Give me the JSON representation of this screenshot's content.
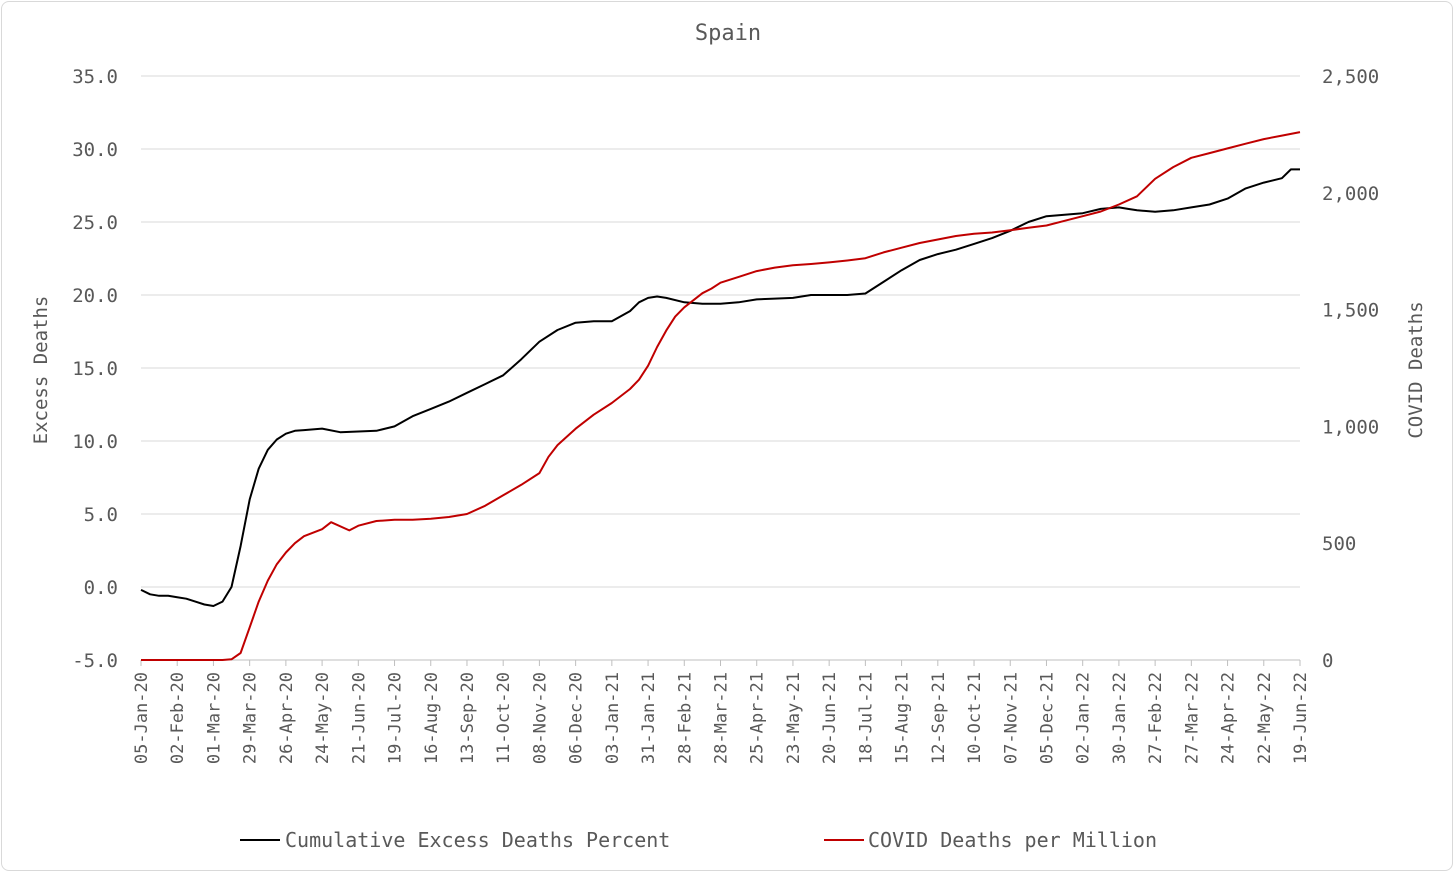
{
  "chart_data": {
    "type": "line",
    "title": "Spain",
    "y_left_label": "Excess Deaths",
    "y_right_label": "COVID Deaths",
    "y_left_range": [
      -5,
      35
    ],
    "y_left_ticks": [
      "35.0",
      "30.0",
      "25.0",
      "20.0",
      "15.0",
      "10.0",
      "5.0",
      "0.0",
      "-5.0"
    ],
    "y_right_range": [
      0,
      2500
    ],
    "y_right_ticks": [
      "2,500",
      "2,000",
      "1,500",
      "1,000",
      "500",
      "0"
    ],
    "x_range": [
      "2020-01-05",
      "2022-06-19"
    ],
    "x_tick_labels": [
      "05-Jan-20",
      "02-Feb-20",
      "01-Mar-20",
      "29-Mar-20",
      "26-Apr-20",
      "24-May-20",
      "21-Jun-20",
      "19-Jul-20",
      "16-Aug-20",
      "13-Sep-20",
      "11-Oct-20",
      "08-Nov-20",
      "06-Dec-20",
      "03-Jan-21",
      "31-Jan-21",
      "28-Feb-21",
      "28-Mar-21",
      "25-Apr-21",
      "23-May-21",
      "20-Jun-21",
      "18-Jul-21",
      "15-Aug-21",
      "12-Sep-21",
      "10-Oct-21",
      "07-Nov-21",
      "05-Dec-21",
      "02-Jan-22",
      "30-Jan-22",
      "27-Feb-22",
      "27-Mar-22",
      "24-Apr-22",
      "22-May-22",
      "19-Jun-22"
    ],
    "grid": true,
    "legend_position": "bottom",
    "series": [
      {
        "name": "Cumulative Excess Deaths Percent",
        "axis": "left",
        "color": "#000000",
        "x": [
          "2020-01-05",
          "2020-01-12",
          "2020-01-19",
          "2020-01-26",
          "2020-02-02",
          "2020-02-09",
          "2020-02-16",
          "2020-02-23",
          "2020-03-01",
          "2020-03-08",
          "2020-03-15",
          "2020-03-22",
          "2020-03-29",
          "2020-04-05",
          "2020-04-12",
          "2020-04-19",
          "2020-04-26",
          "2020-05-03",
          "2020-05-10",
          "2020-05-24",
          "2020-06-07",
          "2020-06-21",
          "2020-07-05",
          "2020-07-19",
          "2020-08-02",
          "2020-08-16",
          "2020-08-30",
          "2020-09-13",
          "2020-09-27",
          "2020-10-11",
          "2020-10-25",
          "2020-11-08",
          "2020-11-22",
          "2020-12-06",
          "2020-12-20",
          "2021-01-03",
          "2021-01-17",
          "2021-01-24",
          "2021-01-31",
          "2021-02-07",
          "2021-02-14",
          "2021-02-28",
          "2021-03-14",
          "2021-03-28",
          "2021-04-11",
          "2021-04-25",
          "2021-05-09",
          "2021-05-23",
          "2021-06-06",
          "2021-06-20",
          "2021-07-04",
          "2021-07-18",
          "2021-08-01",
          "2021-08-15",
          "2021-08-29",
          "2021-09-12",
          "2021-09-26",
          "2021-10-10",
          "2021-10-24",
          "2021-11-07",
          "2021-11-21",
          "2021-12-05",
          "2021-12-19",
          "2022-01-02",
          "2022-01-16",
          "2022-01-30",
          "2022-02-06",
          "2022-02-13",
          "2022-02-27",
          "2022-03-13",
          "2022-03-27",
          "2022-04-10",
          "2022-04-24",
          "2022-05-08",
          "2022-05-22",
          "2022-06-05",
          "2022-06-12",
          "2022-06-19"
        ],
        "values": [
          -0.2,
          -0.5,
          -0.6,
          -0.6,
          -0.7,
          -0.8,
          -1.0,
          -1.2,
          -1.3,
          -1.0,
          0.0,
          2.8,
          6.0,
          8.1,
          9.4,
          10.1,
          10.5,
          10.7,
          10.75,
          10.85,
          10.6,
          10.65,
          10.7,
          11.0,
          11.7,
          12.2,
          12.7,
          13.3,
          13.9,
          14.5,
          15.6,
          16.8,
          17.6,
          18.1,
          18.2,
          18.2,
          18.9,
          19.5,
          19.8,
          19.9,
          19.8,
          19.5,
          19.4,
          19.4,
          19.5,
          19.7,
          19.75,
          19.8,
          20.0,
          20.0,
          20.0,
          20.1,
          20.9,
          21.7,
          22.4,
          22.8,
          23.1,
          23.5,
          23.9,
          24.4,
          25.0,
          25.4,
          25.5,
          25.6,
          25.9,
          26.0,
          25.9,
          25.8,
          25.7,
          25.8,
          26.0,
          26.2,
          26.6,
          27.3,
          27.7,
          28.0,
          28.6,
          28.6
        ]
      },
      {
        "name": "COVID Deaths per Million",
        "axis": "right",
        "color": "#c00000",
        "x": [
          "2020-01-05",
          "2020-02-02",
          "2020-03-01",
          "2020-03-08",
          "2020-03-15",
          "2020-03-22",
          "2020-03-29",
          "2020-04-05",
          "2020-04-12",
          "2020-04-19",
          "2020-04-26",
          "2020-05-03",
          "2020-05-10",
          "2020-05-24",
          "2020-05-31",
          "2020-06-14",
          "2020-06-21",
          "2020-07-05",
          "2020-07-19",
          "2020-08-02",
          "2020-08-16",
          "2020-08-30",
          "2020-09-13",
          "2020-09-27",
          "2020-10-11",
          "2020-10-25",
          "2020-11-08",
          "2020-11-15",
          "2020-11-22",
          "2020-12-06",
          "2020-12-20",
          "2021-01-03",
          "2021-01-17",
          "2021-01-24",
          "2021-01-31",
          "2021-02-07",
          "2021-02-14",
          "2021-02-21",
          "2021-02-28",
          "2021-03-07",
          "2021-03-14",
          "2021-03-21",
          "2021-03-28",
          "2021-04-11",
          "2021-04-25",
          "2021-05-09",
          "2021-05-23",
          "2021-06-06",
          "2021-06-20",
          "2021-07-04",
          "2021-07-18",
          "2021-08-01",
          "2021-08-15",
          "2021-08-29",
          "2021-09-12",
          "2021-09-26",
          "2021-10-10",
          "2021-10-24",
          "2021-11-07",
          "2021-11-21",
          "2021-12-05",
          "2021-12-19",
          "2022-01-02",
          "2022-01-16",
          "2022-01-30",
          "2022-02-13",
          "2022-02-27",
          "2022-03-13",
          "2022-03-27",
          "2022-04-10",
          "2022-04-24",
          "2022-05-08",
          "2022-05-22",
          "2022-06-05",
          "2022-06-19"
        ],
        "values": [
          0,
          0,
          0,
          0,
          3,
          30,
          140,
          250,
          340,
          410,
          460,
          500,
          530,
          560,
          590,
          555,
          575,
          595,
          600,
          600,
          605,
          612,
          625,
          660,
          705,
          750,
          800,
          870,
          920,
          990,
          1050,
          1100,
          1160,
          1200,
          1260,
          1340,
          1410,
          1470,
          1510,
          1540,
          1570,
          1590,
          1615,
          1640,
          1665,
          1680,
          1690,
          1695,
          1702,
          1710,
          1720,
          1745,
          1765,
          1785,
          1800,
          1815,
          1825,
          1830,
          1840,
          1850,
          1860,
          1880,
          1900,
          1920,
          1950,
          1985,
          2060,
          2110,
          2150,
          2170,
          2190,
          2210,
          2230,
          2245,
          2260
        ]
      }
    ]
  }
}
